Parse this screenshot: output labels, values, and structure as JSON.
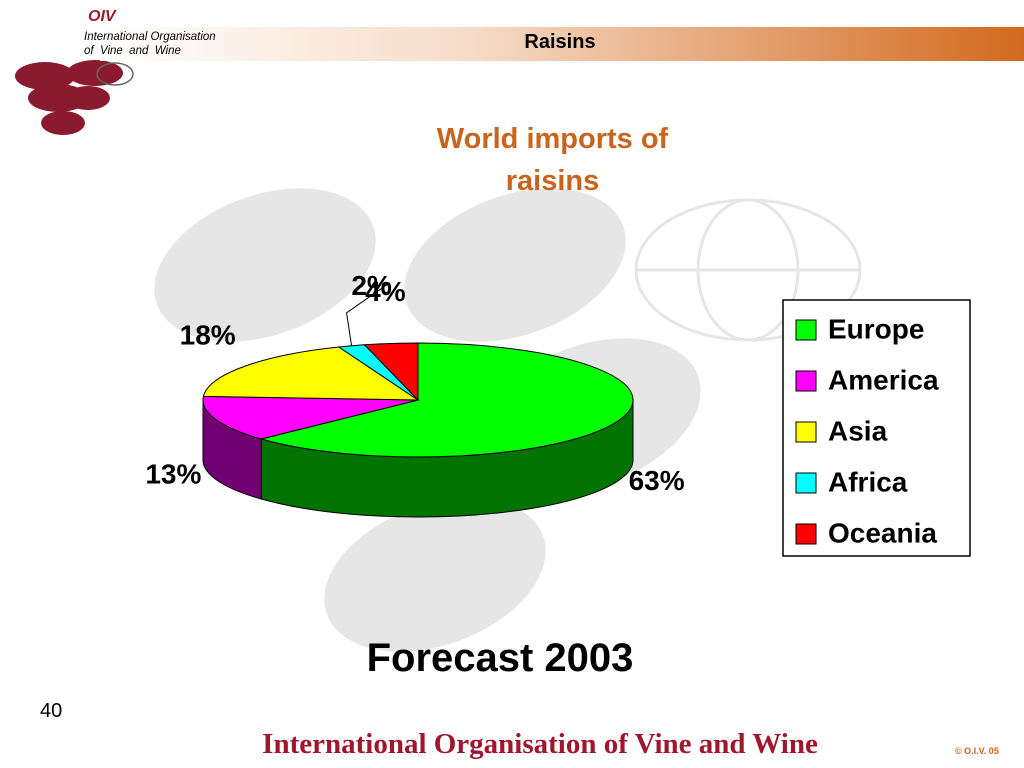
{
  "header": {
    "logo": "OIV",
    "org_line1": "International Organisation",
    "org_line2": "of  Vine  and  Wine",
    "title": "Raisins"
  },
  "chart_data": {
    "type": "pie",
    "title": "World imports of raisins",
    "categories": [
      "Europe",
      "America",
      "Asia",
      "Africa",
      "Oceania"
    ],
    "values": [
      63,
      13,
      18,
      2,
      4
    ],
    "value_labels": [
      "63%",
      "13%",
      "18%",
      "2%",
      "4%"
    ],
    "colors": [
      "#00ff00",
      "#ff00ff",
      "#ffff00",
      "#00ffff",
      "#ff0000"
    ],
    "legend": "right",
    "subtitle": "Forecast 2003"
  },
  "footer": {
    "page_number": "40",
    "organisation": "International Organisation of Vine and Wine",
    "copyright": "© O.I.V. 05"
  }
}
